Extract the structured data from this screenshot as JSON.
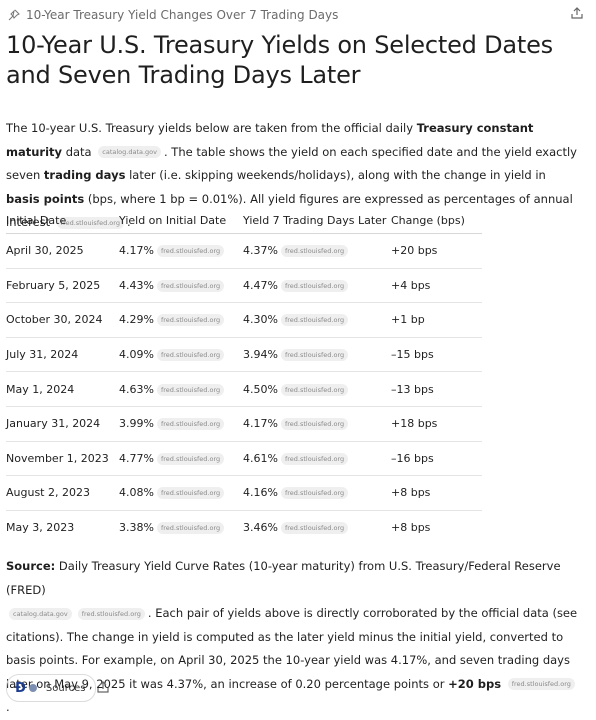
{
  "header": {
    "title": "10-Year Treasury Yield Changes Over 7 Trading Days"
  },
  "heading": "10-Year U.S. Treasury Yields on Selected Dates and Seven Trading Days Later",
  "intro": [
    "The 10-year U.S. Treasury yields below are taken from the official daily ",
    "Treasury constant maturity",
    " data",
    "catalog.data.gov",
    ". The table shows the yield on each specified date and the yield exactly seven ",
    "trading days",
    " later (i.e. skipping weekends/holidays), along with the change in yield in ",
    "basis points",
    " (bps, where 1 bp = 0.01%). All yield figures are expressed as percentages of annual interest",
    "fred.stlouisfed.org",
    "."
  ],
  "table": {
    "headers": [
      "Initial Date",
      "Yield on Initial Date",
      "Yield 7 Trading Days Later",
      "Change (bps)"
    ],
    "rows": [
      {
        "date": "April 30, 2025",
        "initial": "4.17%",
        "initial_source": "fred.stlouisfed.org",
        "later": "4.37%",
        "later_source": "fred.stlouisfed.org",
        "change": "+20 bps"
      },
      {
        "date": "February 5, 2025",
        "initial": "4.43%",
        "initial_source": "fred.stlouisfed.org",
        "later": "4.47%",
        "later_source": "fred.stlouisfed.org",
        "change": "+4 bps"
      },
      {
        "date": "October 30, 2024",
        "initial": "4.29%",
        "initial_source": "fred.stlouisfed.org",
        "later": "4.30%",
        "later_source": "fred.stlouisfed.org",
        "change": "+1 bp"
      },
      {
        "date": "July 31, 2024",
        "initial": "4.09%",
        "initial_source": "fred.stlouisfed.org",
        "later": "3.94%",
        "later_source": "fred.stlouisfed.org",
        "change": "–15 bps"
      },
      {
        "date": "May 1, 2024",
        "initial": "4.63%",
        "initial_source": "fred.stlouisfed.org",
        "later": "4.50%",
        "later_source": "fred.stlouisfed.org",
        "change": "–13 bps"
      },
      {
        "date": "January 31, 2024",
        "initial": "3.99%",
        "initial_source": "fred.stlouisfed.org",
        "later": "4.17%",
        "later_source": "fred.stlouisfed.org",
        "change": "+18 bps"
      },
      {
        "date": "November 1, 2023",
        "initial": "4.77%",
        "initial_source": "fred.stlouisfed.org",
        "later": "4.61%",
        "later_source": "fred.stlouisfed.org",
        "change": "–16 bps"
      },
      {
        "date": "August 2, 2023",
        "initial": "4.08%",
        "initial_source": "fred.stlouisfed.org",
        "later": "4.16%",
        "later_source": "fred.stlouisfed.org",
        "change": "+8 bps"
      },
      {
        "date": "May 3, 2023",
        "initial": "3.38%",
        "initial_source": "fred.stlouisfed.org",
        "later": "3.46%",
        "later_source": "fred.stlouisfed.org",
        "change": "+8 bps"
      }
    ]
  },
  "source": [
    "Source:",
    " Daily Treasury Yield Curve Rates (10-year maturity) from U.S. Treasury/Federal Reserve (FRED)",
    "catalog.data.gov",
    "fred.stlouisfed.org",
    ". Each pair of yields above is directly corroborated by the official data (see citations). The change in yield is computed as the later yield minus the initial yield, converted to basis points. For example, on April 30, 2025 the 10-year yield was 4.17%, and seven trading days later on May 9, 2025 it was 4.37%, an increase of 0.20 percentage points or ",
    "+20 bps",
    "fred.stlouisfed.org",
    "."
  ],
  "footer": {
    "sources_button": "Sources"
  }
}
